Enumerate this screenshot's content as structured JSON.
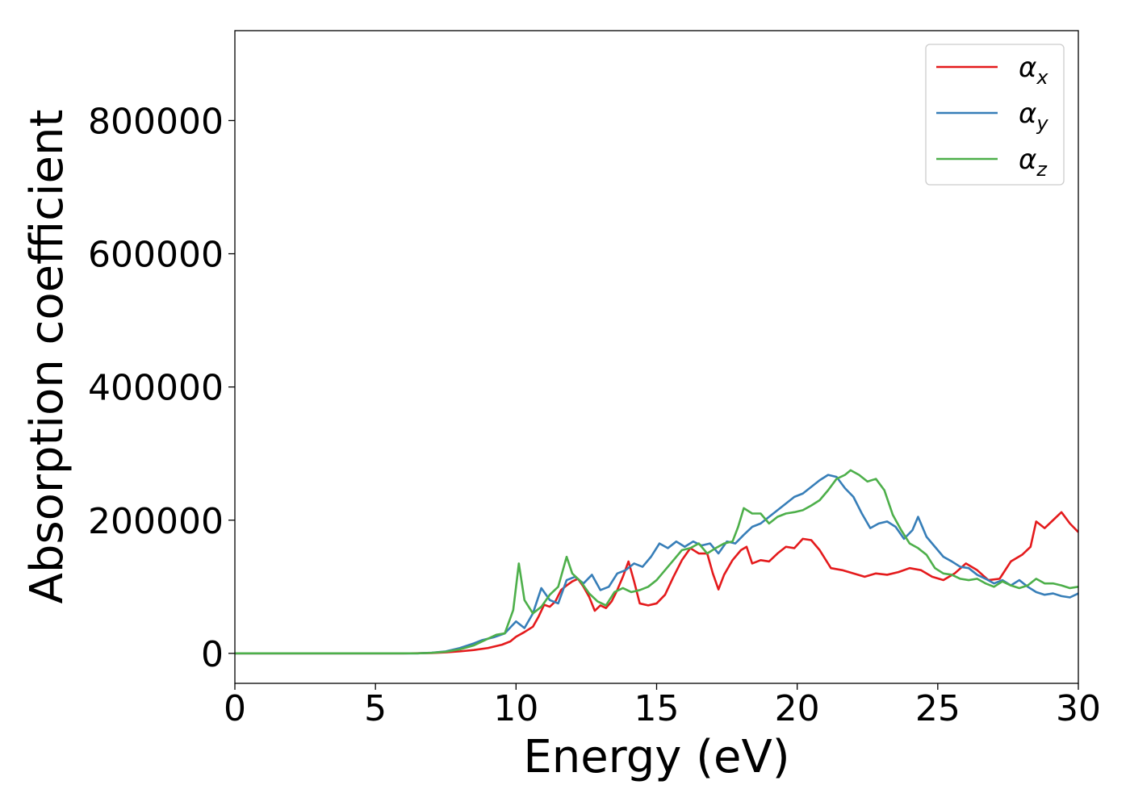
{
  "chart_data": {
    "type": "line",
    "title": "",
    "xlabel": "Energy (eV)",
    "ylabel": "Absorption coefficient",
    "xlim": [
      0,
      30
    ],
    "ylim": [
      -45000,
      935000
    ],
    "xticks": [
      0,
      5,
      10,
      15,
      20,
      25,
      30
    ],
    "yticks": [
      0,
      200000,
      400000,
      600000,
      800000
    ],
    "grid": false,
    "legend": "top-right",
    "colors": {
      "alpha_x": "#e41a1c",
      "alpha_y": "#377eb8",
      "alpha_z": "#4daf4a"
    },
    "series": [
      {
        "name": "αx",
        "legend_main": "α",
        "legend_sub": "x",
        "color": "#e41a1c",
        "points": [
          [
            0,
            0
          ],
          [
            6,
            0
          ],
          [
            7,
            500
          ],
          [
            7.5,
            1500
          ],
          [
            8,
            3000
          ],
          [
            8.5,
            5000
          ],
          [
            9,
            8000
          ],
          [
            9.5,
            13000
          ],
          [
            9.8,
            18000
          ],
          [
            10,
            25000
          ],
          [
            10.3,
            32000
          ],
          [
            10.6,
            40000
          ],
          [
            10.8,
            55000
          ],
          [
            11,
            73000
          ],
          [
            11.2,
            70000
          ],
          [
            11.4,
            78000
          ],
          [
            11.6,
            95000
          ],
          [
            11.8,
            102000
          ],
          [
            12,
            108000
          ],
          [
            12.2,
            112000
          ],
          [
            12.4,
            100000
          ],
          [
            12.6,
            85000
          ],
          [
            12.8,
            64000
          ],
          [
            13,
            72000
          ],
          [
            13.2,
            68000
          ],
          [
            13.4,
            78000
          ],
          [
            13.6,
            95000
          ],
          [
            13.8,
            115000
          ],
          [
            14,
            138000
          ],
          [
            14.2,
            108000
          ],
          [
            14.4,
            75000
          ],
          [
            14.7,
            72000
          ],
          [
            15,
            75000
          ],
          [
            15.3,
            88000
          ],
          [
            15.6,
            115000
          ],
          [
            15.9,
            140000
          ],
          [
            16.2,
            158000
          ],
          [
            16.5,
            150000
          ],
          [
            16.8,
            150000
          ],
          [
            17,
            120000
          ],
          [
            17.2,
            96000
          ],
          [
            17.4,
            118000
          ],
          [
            17.7,
            140000
          ],
          [
            18,
            155000
          ],
          [
            18.2,
            160000
          ],
          [
            18.4,
            135000
          ],
          [
            18.7,
            140000
          ],
          [
            19,
            138000
          ],
          [
            19.3,
            150000
          ],
          [
            19.6,
            160000
          ],
          [
            19.9,
            158000
          ],
          [
            20.2,
            172000
          ],
          [
            20.5,
            170000
          ],
          [
            20.8,
            155000
          ],
          [
            21.2,
            128000
          ],
          [
            21.6,
            125000
          ],
          [
            22,
            120000
          ],
          [
            22.4,
            115000
          ],
          [
            22.8,
            120000
          ],
          [
            23.2,
            118000
          ],
          [
            23.6,
            122000
          ],
          [
            24,
            128000
          ],
          [
            24.4,
            125000
          ],
          [
            24.8,
            115000
          ],
          [
            25.2,
            110000
          ],
          [
            25.6,
            120000
          ],
          [
            26,
            135000
          ],
          [
            26.4,
            125000
          ],
          [
            26.8,
            110000
          ],
          [
            27.2,
            112000
          ],
          [
            27.6,
            138000
          ],
          [
            28,
            148000
          ],
          [
            28.3,
            160000
          ],
          [
            28.5,
            198000
          ],
          [
            28.8,
            188000
          ],
          [
            29.1,
            200000
          ],
          [
            29.4,
            212000
          ],
          [
            29.7,
            195000
          ],
          [
            30,
            182000
          ]
        ]
      },
      {
        "name": "αy",
        "legend_main": "α",
        "legend_sub": "y",
        "color": "#377eb8",
        "points": [
          [
            0,
            0
          ],
          [
            6.5,
            0
          ],
          [
            7,
            1000
          ],
          [
            7.5,
            3000
          ],
          [
            8,
            8000
          ],
          [
            8.5,
            15000
          ],
          [
            8.8,
            20000
          ],
          [
            9.2,
            24000
          ],
          [
            9.6,
            30000
          ],
          [
            10,
            48000
          ],
          [
            10.3,
            38000
          ],
          [
            10.6,
            60000
          ],
          [
            10.9,
            98000
          ],
          [
            11.2,
            80000
          ],
          [
            11.5,
            75000
          ],
          [
            11.8,
            110000
          ],
          [
            12.1,
            115000
          ],
          [
            12.4,
            105000
          ],
          [
            12.7,
            118000
          ],
          [
            13,
            95000
          ],
          [
            13.3,
            100000
          ],
          [
            13.6,
            120000
          ],
          [
            13.9,
            125000
          ],
          [
            14.2,
            135000
          ],
          [
            14.5,
            130000
          ],
          [
            14.8,
            145000
          ],
          [
            15.1,
            165000
          ],
          [
            15.4,
            158000
          ],
          [
            15.7,
            168000
          ],
          [
            16,
            160000
          ],
          [
            16.3,
            168000
          ],
          [
            16.6,
            162000
          ],
          [
            16.9,
            165000
          ],
          [
            17.2,
            150000
          ],
          [
            17.5,
            168000
          ],
          [
            17.8,
            165000
          ],
          [
            18.1,
            178000
          ],
          [
            18.4,
            190000
          ],
          [
            18.7,
            195000
          ],
          [
            19,
            205000
          ],
          [
            19.3,
            215000
          ],
          [
            19.6,
            225000
          ],
          [
            19.9,
            235000
          ],
          [
            20.2,
            240000
          ],
          [
            20.5,
            250000
          ],
          [
            20.8,
            260000
          ],
          [
            21.1,
            268000
          ],
          [
            21.4,
            265000
          ],
          [
            21.7,
            248000
          ],
          [
            22,
            235000
          ],
          [
            22.3,
            210000
          ],
          [
            22.6,
            188000
          ],
          [
            22.9,
            195000
          ],
          [
            23.2,
            198000
          ],
          [
            23.5,
            190000
          ],
          [
            23.8,
            172000
          ],
          [
            24.1,
            185000
          ],
          [
            24.3,
            205000
          ],
          [
            24.6,
            175000
          ],
          [
            24.9,
            160000
          ],
          [
            25.2,
            145000
          ],
          [
            25.5,
            138000
          ],
          [
            25.8,
            130000
          ],
          [
            26.1,
            128000
          ],
          [
            26.4,
            118000
          ],
          [
            26.7,
            112000
          ],
          [
            27,
            105000
          ],
          [
            27.3,
            110000
          ],
          [
            27.6,
            102000
          ],
          [
            27.9,
            110000
          ],
          [
            28.2,
            100000
          ],
          [
            28.5,
            92000
          ],
          [
            28.8,
            88000
          ],
          [
            29.1,
            90000
          ],
          [
            29.4,
            86000
          ],
          [
            29.7,
            84000
          ],
          [
            30,
            90000
          ]
        ]
      },
      {
        "name": "αz",
        "legend_main": "α",
        "legend_sub": "z",
        "color": "#4daf4a",
        "points": [
          [
            0,
            0
          ],
          [
            6.5,
            0
          ],
          [
            7,
            800
          ],
          [
            7.5,
            2500
          ],
          [
            8,
            6000
          ],
          [
            8.5,
            12000
          ],
          [
            9,
            22000
          ],
          [
            9.3,
            28000
          ],
          [
            9.6,
            30000
          ],
          [
            9.9,
            65000
          ],
          [
            10.1,
            135000
          ],
          [
            10.3,
            80000
          ],
          [
            10.6,
            60000
          ],
          [
            10.9,
            70000
          ],
          [
            11.2,
            88000
          ],
          [
            11.5,
            100000
          ],
          [
            11.8,
            145000
          ],
          [
            12,
            120000
          ],
          [
            12.3,
            108000
          ],
          [
            12.6,
            90000
          ],
          [
            12.9,
            78000
          ],
          [
            13.2,
            72000
          ],
          [
            13.5,
            92000
          ],
          [
            13.8,
            98000
          ],
          [
            14.1,
            92000
          ],
          [
            14.4,
            95000
          ],
          [
            14.7,
            100000
          ],
          [
            15,
            110000
          ],
          [
            15.3,
            125000
          ],
          [
            15.6,
            140000
          ],
          [
            15.9,
            155000
          ],
          [
            16.2,
            158000
          ],
          [
            16.5,
            165000
          ],
          [
            16.8,
            150000
          ],
          [
            17.1,
            158000
          ],
          [
            17.4,
            165000
          ],
          [
            17.7,
            168000
          ],
          [
            17.9,
            190000
          ],
          [
            18.1,
            218000
          ],
          [
            18.4,
            210000
          ],
          [
            18.7,
            210000
          ],
          [
            19,
            195000
          ],
          [
            19.3,
            205000
          ],
          [
            19.6,
            210000
          ],
          [
            19.9,
            212000
          ],
          [
            20.2,
            215000
          ],
          [
            20.5,
            222000
          ],
          [
            20.8,
            230000
          ],
          [
            21.1,
            245000
          ],
          [
            21.4,
            262000
          ],
          [
            21.7,
            268000
          ],
          [
            21.9,
            275000
          ],
          [
            22.2,
            268000
          ],
          [
            22.5,
            258000
          ],
          [
            22.8,
            262000
          ],
          [
            23.1,
            245000
          ],
          [
            23.4,
            208000
          ],
          [
            23.7,
            185000
          ],
          [
            24,
            165000
          ],
          [
            24.3,
            158000
          ],
          [
            24.6,
            148000
          ],
          [
            24.9,
            128000
          ],
          [
            25.2,
            120000
          ],
          [
            25.5,
            118000
          ],
          [
            25.8,
            112000
          ],
          [
            26.1,
            110000
          ],
          [
            26.4,
            112000
          ],
          [
            26.7,
            105000
          ],
          [
            27,
            100000
          ],
          [
            27.3,
            108000
          ],
          [
            27.6,
            102000
          ],
          [
            27.9,
            98000
          ],
          [
            28.2,
            102000
          ],
          [
            28.5,
            112000
          ],
          [
            28.8,
            105000
          ],
          [
            29.1,
            105000
          ],
          [
            29.4,
            102000
          ],
          [
            29.7,
            98000
          ],
          [
            30,
            100000
          ]
        ]
      }
    ]
  }
}
